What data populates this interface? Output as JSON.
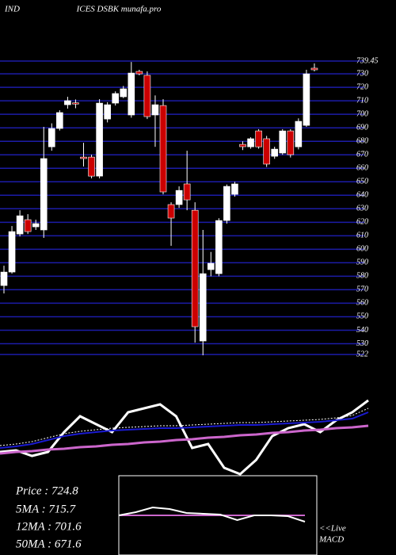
{
  "chart_data": [
    {
      "type": "candlestick",
      "label_left": "IND",
      "title": "ICES DSBK munafa.pro",
      "ylim": [
        518,
        742
      ],
      "yticks": [
        739.45,
        730,
        720,
        710,
        700,
        690,
        680,
        670,
        660,
        650,
        640,
        630,
        620,
        610,
        600,
        590,
        580,
        570,
        560,
        550,
        540,
        530,
        522
      ],
      "grid": true,
      "grid_color": "#1c1ca8",
      "up_color": "#ffffff",
      "down_color": "#cc0000",
      "open": [
        573.1,
        583.1,
        611.3,
        621.9,
        616.6,
        614.3,
        675.9,
        689.5,
        707.1,
        708.5,
        668.3,
        668.3,
        654.2,
        696.5,
        708.3,
        713.0,
        699.5,
        731.8,
        728.9,
        699.5,
        706.5,
        633.1,
        633.1,
        648.4,
        628.9,
        532.0,
        584.9,
        581.9,
        621.3,
        640.7,
        677.7,
        675.9,
        687.7,
        681.9,
        668.9,
        671.3,
        687.7,
        675.9,
        691.8,
        734.2
      ],
      "high": [
        587.8,
        617.2,
        628.9,
        626.0,
        621.9,
        690.7,
        693.3,
        703.0,
        713.0,
        711.0,
        678.9,
        670.1,
        711.2,
        709.0,
        717.0,
        721.0,
        738.8,
        733.0,
        731.8,
        714.0,
        711.2,
        634.8,
        646.6,
        673.0,
        634.8,
        614.3,
        598.0,
        623.0,
        648.0,
        650.0,
        680.0,
        683.0,
        689.0,
        684.0,
        676.0,
        689.0,
        689.0,
        697.0,
        733.0,
        737.7
      ],
      "low": [
        567.2,
        581.9,
        609.5,
        611.3,
        614.3,
        608.4,
        673.0,
        688.0,
        704.2,
        704.5,
        661.3,
        652.5,
        652.5,
        694.0,
        706.5,
        712.0,
        697.5,
        728.9,
        696.5,
        675.9,
        640.7,
        602.5,
        630.7,
        628.9,
        530.8,
        521.4,
        580.0,
        580.0,
        619.0,
        639.0,
        673.5,
        674.5,
        674.5,
        661.0,
        667.0,
        670.0,
        668.0,
        674.0,
        690.7,
        731.8
      ],
      "close": [
        583.1,
        613.1,
        624.8,
        613.1,
        619.0,
        667.2,
        689.5,
        701.3,
        710.1,
        708.0,
        667.2,
        654.2,
        708.3,
        707.1,
        715.4,
        718.9,
        730.6,
        730.0,
        698.3,
        707.1,
        642.5,
        623.1,
        643.6,
        636.6,
        542.6,
        581.9,
        589.6,
        621.3,
        646.6,
        648.4,
        676.0,
        681.9,
        675.9,
        663.1,
        674.2,
        687.7,
        670.1,
        694.8,
        730.0,
        733.0
      ]
    },
    {
      "type": "line",
      "ylim": [
        0,
        100
      ],
      "series": [
        {
          "color": "#ffffff",
          "width": 3,
          "values": [
            30,
            32,
            25,
            30,
            55,
            75,
            65,
            55,
            80,
            85,
            90,
            75,
            35,
            40,
            10,
            2,
            20,
            50,
            60,
            65,
            55,
            70,
            80,
            95
          ]
        },
        {
          "color": "#ffffff",
          "width": 1,
          "dash": true,
          "values": [
            38,
            40,
            43,
            48,
            53,
            56,
            58,
            60,
            61,
            62,
            63,
            63,
            64,
            65,
            66,
            67,
            67,
            68,
            69,
            70,
            71,
            73,
            76,
            85
          ]
        },
        {
          "color": "#1a1ad0",
          "width": 2,
          "values": [
            35,
            37,
            40,
            45,
            50,
            53,
            55,
            57,
            58,
            59,
            60,
            60,
            61,
            62,
            63,
            64,
            64,
            65,
            66,
            67,
            68,
            70,
            72,
            80
          ]
        },
        {
          "color": "#cc66cc",
          "width": 3,
          "values": [
            28,
            30,
            31,
            33,
            34,
            36,
            37,
            39,
            40,
            42,
            43,
            45,
            46,
            48,
            49,
            51,
            52,
            54,
            55,
            57,
            58,
            60,
            61,
            63
          ]
        }
      ]
    },
    {
      "type": "line",
      "ylim": [
        -50,
        50
      ],
      "frame": true,
      "series": [
        {
          "color": "#cc66cc",
          "width": 2,
          "values": [
            0,
            0,
            0,
            0,
            0,
            0,
            0,
            0,
            0,
            0,
            0,
            0
          ]
        },
        {
          "color": "#ffffff",
          "width": 2,
          "values": [
            0,
            4,
            10,
            8,
            3,
            2,
            1,
            -6,
            0,
            0,
            -1,
            -8
          ]
        }
      ]
    }
  ],
  "stats": [
    "Price   : 724.8",
    "5MA : 715.7",
    "12MA : 701.6",
    "50MA : 671.6"
  ],
  "macd_label": [
    "<<Live",
    "MACD"
  ]
}
